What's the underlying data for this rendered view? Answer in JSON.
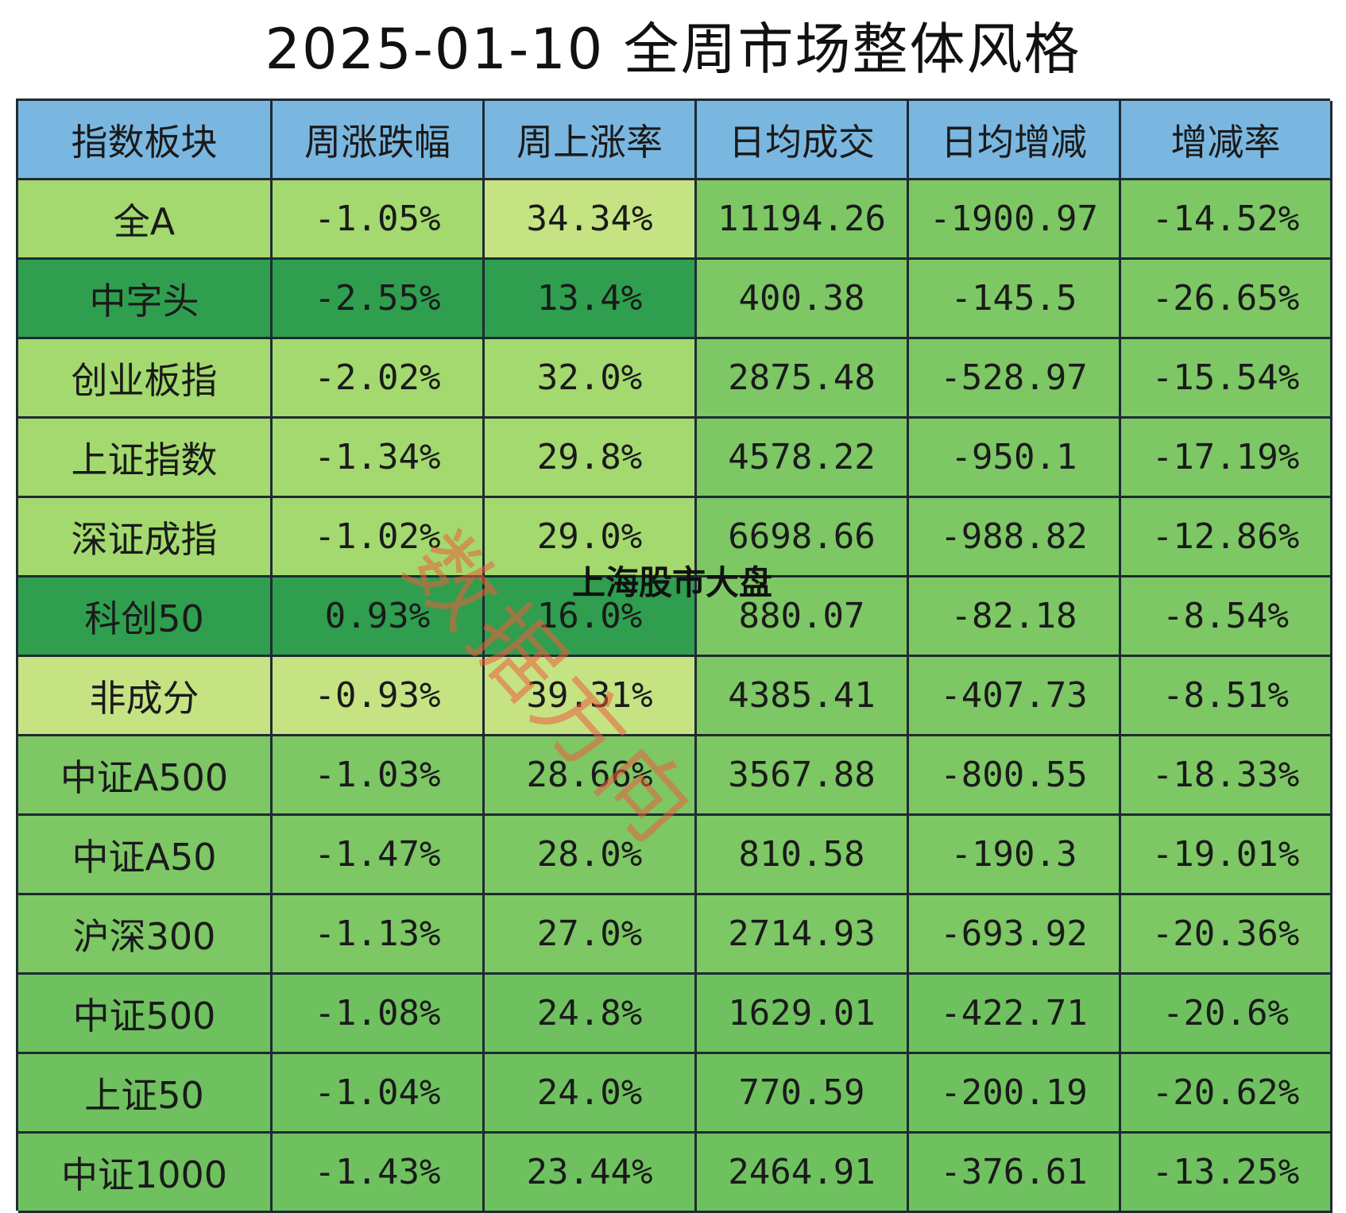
{
  "page_title": "2025-01-10 全周市场整体风格",
  "watermark": "数据方向",
  "overlay_text": "上海股市大盘",
  "colors": {
    "header": "#7ab7e0",
    "light_yellow_green": "#c5e383",
    "light_green": "#a3d96e",
    "green": "#7dc765",
    "medium_green": "#6fc15f",
    "dark_green": "#2f9e4f",
    "border": "#1f2a33"
  },
  "chart_data": {
    "type": "table",
    "title": "2025-01-10 全周市场整体风格",
    "columns": [
      "指数板块",
      "周涨跌幅",
      "周上涨率",
      "日均成交",
      "日均增减",
      "增减率"
    ],
    "rows": [
      [
        "全A",
        "-1.05%",
        "34.34%",
        "11194.26",
        "-1900.97",
        "-14.52%"
      ],
      [
        "中字头",
        "-2.55%",
        "13.4%",
        "400.38",
        "-145.5",
        "-26.65%"
      ],
      [
        "创业板指",
        "-2.02%",
        "32.0%",
        "2875.48",
        "-528.97",
        "-15.54%"
      ],
      [
        "上证指数",
        "-1.34%",
        "29.8%",
        "4578.22",
        "-950.1",
        "-17.19%"
      ],
      [
        "深证成指",
        "-1.02%",
        "29.0%",
        "6698.66",
        "-988.82",
        "-12.86%"
      ],
      [
        "科创50",
        "0.93%",
        "16.0%",
        "880.07",
        "-82.18",
        "-8.54%"
      ],
      [
        "非成分",
        "-0.93%",
        "39.31%",
        "4385.41",
        "-407.73",
        "-8.51%"
      ],
      [
        "中证A500",
        "-1.03%",
        "28.66%",
        "3567.88",
        "-800.55",
        "-18.33%"
      ],
      [
        "中证A50",
        "-1.47%",
        "28.0%",
        "810.58",
        "-190.3",
        "-19.01%"
      ],
      [
        "沪深300",
        "-1.13%",
        "27.0%",
        "2714.93",
        "-693.92",
        "-20.36%"
      ],
      [
        "中证500",
        "-1.08%",
        "24.8%",
        "1629.01",
        "-422.71",
        "-20.6%"
      ],
      [
        "上证50",
        "-1.04%",
        "24.0%",
        "770.59",
        "-200.19",
        "-20.62%"
      ],
      [
        "中证1000",
        "-1.43%",
        "23.44%",
        "2464.91",
        "-376.61",
        "-13.25%"
      ]
    ],
    "cell_fill": [
      [
        "light_green",
        "light_green",
        "light_yellow_green",
        "green",
        "green",
        "green"
      ],
      [
        "dark_green",
        "dark_green",
        "dark_green",
        "green",
        "green",
        "green"
      ],
      [
        "light_green",
        "light_green",
        "light_green",
        "green",
        "green",
        "green"
      ],
      [
        "light_green",
        "light_green",
        "light_green",
        "green",
        "green",
        "green"
      ],
      [
        "light_green",
        "light_green",
        "light_green",
        "green",
        "green",
        "green"
      ],
      [
        "dark_green",
        "dark_green",
        "dark_green",
        "green",
        "green",
        "green"
      ],
      [
        "light_yellow_green",
        "light_yellow_green",
        "light_yellow_green",
        "green",
        "green",
        "green"
      ],
      [
        "green",
        "green",
        "green",
        "green",
        "green",
        "green"
      ],
      [
        "green",
        "green",
        "green",
        "green",
        "green",
        "green"
      ],
      [
        "green",
        "green",
        "green",
        "green",
        "green",
        "green"
      ],
      [
        "medium_green",
        "medium_green",
        "medium_green",
        "medium_green",
        "medium_green",
        "medium_green"
      ],
      [
        "medium_green",
        "medium_green",
        "medium_green",
        "medium_green",
        "medium_green",
        "medium_green"
      ],
      [
        "medium_green",
        "medium_green",
        "medium_green",
        "medium_green",
        "medium_green",
        "medium_green"
      ]
    ]
  }
}
